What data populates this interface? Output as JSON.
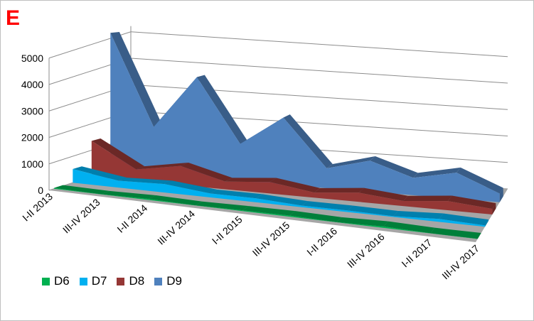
{
  "panel_label": "E",
  "chart_data": {
    "type": "area",
    "title": "",
    "categories": [
      "I-II 2013",
      "III-IV 2013",
      "I-II 2014",
      "III-IV 2014",
      "I-II 2015",
      "III-IV 2015",
      "I-II 2016",
      "III-IV 2016",
      "I-II 2017",
      "III-IV 2017"
    ],
    "y_ticks": [
      "0",
      "1000",
      "2000",
      "3000",
      "4000",
      "5000"
    ],
    "ylim": [
      0,
      5000
    ],
    "grid": true,
    "legend_position": "bottom-left",
    "series": [
      {
        "name": "D6",
        "color": "#00b050",
        "values": [
          30,
          5,
          40,
          5,
          30,
          40,
          5,
          50,
          5,
          5
        ]
      },
      {
        "name": "D7",
        "color": "#00b0f0",
        "values": [
          520,
          260,
          320,
          150,
          150,
          60,
          60,
          30,
          110,
          50
        ]
      },
      {
        "name": "D8",
        "color": "#953735",
        "values": [
          1400,
          450,
          750,
          300,
          450,
          200,
          360,
          200,
          360,
          220
        ]
      },
      {
        "name": "D9",
        "color": "#4f81bd",
        "values": [
          5550,
          1900,
          4050,
          1500,
          2700,
          800,
          1250,
          700,
          1050,
          350
        ]
      }
    ]
  }
}
